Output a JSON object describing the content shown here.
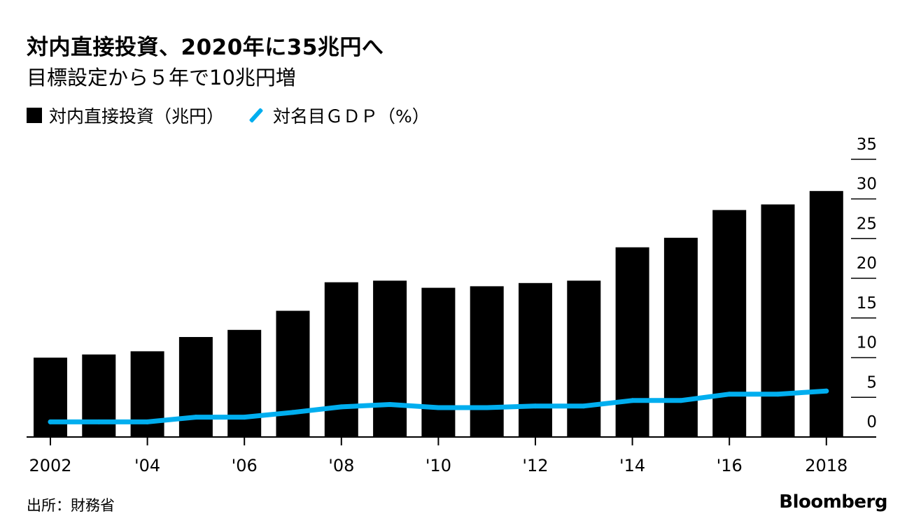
{
  "title": "対内直接投資、2020年に35兆円へ",
  "subtitle": "目標設定から５年で10兆円増",
  "legend": {
    "bar_label": "対内直接投資（兆円）",
    "line_label": "対名目ＧＤＰ（%）"
  },
  "source": "出所：財務省",
  "brand": "Bloomberg",
  "colors": {
    "bar": "#000000",
    "line": "#00aeef",
    "axis": "#000000"
  },
  "chart_data": {
    "type": "bar",
    "categories": [
      "2002",
      "2003",
      "2004",
      "2005",
      "2006",
      "2007",
      "2008",
      "2009",
      "2010",
      "2011",
      "2012",
      "2013",
      "2014",
      "2015",
      "2016",
      "2017",
      "2018"
    ],
    "x_tick_labels": {
      "2002": "2002",
      "2004": "'04",
      "2006": "'06",
      "2008": "'08",
      "2010": "'10",
      "2012": "'12",
      "2014": "'14",
      "2016": "'16",
      "2018": "2018"
    },
    "series": [
      {
        "name": "対内直接投資（兆円）",
        "type": "bar",
        "values": [
          10.0,
          10.4,
          10.8,
          12.6,
          13.5,
          15.9,
          19.5,
          19.7,
          18.8,
          19.0,
          19.4,
          19.7,
          23.9,
          25.1,
          28.6,
          29.3,
          31.0
        ]
      },
      {
        "name": "対名目ＧＤＰ（%）",
        "type": "line",
        "values": [
          1.9,
          1.9,
          1.9,
          2.5,
          2.5,
          3.1,
          3.8,
          4.1,
          3.7,
          3.7,
          3.9,
          3.9,
          4.6,
          4.6,
          5.4,
          5.4,
          5.8
        ]
      }
    ],
    "y_ticks": [
      "0",
      "5",
      "10",
      "15",
      "20",
      "25",
      "30",
      "35"
    ],
    "ylim": [
      0,
      35
    ],
    "y_axis_position": "right",
    "xlabel": "",
    "ylabel": "",
    "grid": false,
    "legend_position": "top-left"
  }
}
